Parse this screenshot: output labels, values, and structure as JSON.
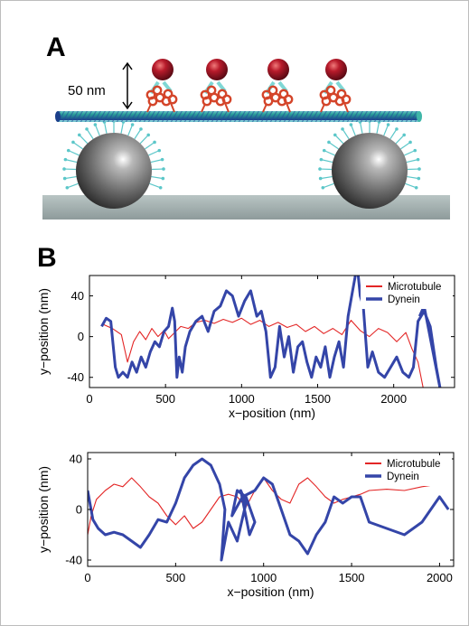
{
  "panel_a": {
    "letter": "A",
    "scale_label": "50 nm",
    "colors": {
      "microtubule": "#2aa199",
      "dynein_head": "#9b1020",
      "motor_domain": "#d4452a",
      "bead": "#6d6d6d",
      "linker": "#5cc7c9",
      "surface": "#a7b4b4"
    }
  },
  "panel_b": {
    "letter": "B",
    "colors": {
      "microtubule": "#e32626",
      "dynein": "#3445a8"
    }
  },
  "chart_data": [
    {
      "type": "line",
      "title": "",
      "xlabel": "x−position (nm)",
      "ylabel": "y−position (nm)",
      "xlim": [
        0,
        2400
      ],
      "ylim": [
        -50,
        60
      ],
      "xticks": [
        0,
        500,
        1000,
        1500,
        2000
      ],
      "yticks": [
        -40,
        0,
        40
      ],
      "legend": "top-right",
      "series": [
        {
          "name": "Microtubule",
          "color": "#e32626",
          "x": [
            90,
            150,
            210,
            250,
            290,
            330,
            370,
            410,
            450,
            490,
            520,
            560,
            600,
            650,
            700,
            760,
            820,
            880,
            940,
            1000,
            1060,
            1120,
            1180,
            1240,
            1300,
            1360,
            1420,
            1480,
            1540,
            1600,
            1660,
            1720,
            1780,
            1840,
            1900,
            1960,
            2020,
            2080,
            2120,
            2160,
            2200
          ],
          "y": [
            12,
            8,
            2,
            -25,
            -5,
            5,
            -3,
            8,
            0,
            6,
            -2,
            4,
            10,
            8,
            14,
            16,
            13,
            17,
            14,
            18,
            12,
            16,
            10,
            14,
            9,
            12,
            5,
            10,
            3,
            8,
            2,
            16,
            6,
            0,
            8,
            4,
            -5,
            4,
            -12,
            -25,
            -55
          ]
        },
        {
          "name": "Dynein",
          "color": "#3445a8",
          "x": [
            80,
            110,
            140,
            170,
            190,
            220,
            250,
            280,
            310,
            340,
            370,
            400,
            430,
            460,
            490,
            520,
            545,
            560,
            575,
            590,
            610,
            630,
            660,
            700,
            740,
            780,
            820,
            860,
            900,
            940,
            980,
            1020,
            1060,
            1100,
            1130,
            1160,
            1190,
            1220,
            1250,
            1280,
            1310,
            1340,
            1370,
            1400,
            1430,
            1460,
            1490,
            1520,
            1550,
            1580,
            1610,
            1640,
            1670,
            1700,
            1730,
            1760,
            1780,
            1800,
            1830,
            1860,
            1900,
            1940,
            1980,
            2020,
            2060,
            2100,
            2130,
            2160,
            2200,
            2240,
            2280,
            2310,
            2200,
            2170
          ],
          "y": [
            10,
            18,
            15,
            -30,
            -40,
            -35,
            -40,
            -25,
            -35,
            -20,
            -30,
            -15,
            -5,
            -10,
            5,
            10,
            28,
            15,
            -40,
            -20,
            -35,
            -10,
            5,
            15,
            20,
            5,
            25,
            30,
            45,
            40,
            20,
            35,
            45,
            20,
            25,
            5,
            -40,
            -30,
            10,
            -20,
            0,
            -35,
            -10,
            -5,
            -25,
            -40,
            -20,
            -30,
            -10,
            -40,
            -20,
            -5,
            -30,
            20,
            45,
            70,
            40,
            30,
            -30,
            -15,
            -35,
            -40,
            -30,
            -20,
            -35,
            -40,
            -30,
            15,
            25,
            10,
            -30,
            -55,
            30,
            20
          ]
        }
      ]
    },
    {
      "type": "line",
      "title": "",
      "xlabel": "x−position (nm)",
      "ylabel": "y−position (nm)",
      "xlim": [
        0,
        2080
      ],
      "ylim": [
        -45,
        45
      ],
      "xticks": [
        0,
        500,
        1000,
        1500,
        2000
      ],
      "yticks": [
        -40,
        0,
        40
      ],
      "legend": "top-right",
      "series": [
        {
          "name": "Microtubule",
          "color": "#e32626",
          "x": [
            0,
            20,
            50,
            100,
            150,
            200,
            250,
            300,
            350,
            400,
            450,
            500,
            550,
            600,
            650,
            700,
            750,
            800,
            850,
            900,
            950,
            1000,
            1050,
            1100,
            1150,
            1200,
            1250,
            1300,
            1350,
            1400,
            1450,
            1500,
            1550,
            1600,
            1700,
            1800,
            1900,
            2000,
            2050
          ],
          "y": [
            -20,
            -5,
            8,
            15,
            20,
            18,
            25,
            18,
            10,
            5,
            -5,
            -12,
            -5,
            -15,
            -10,
            0,
            10,
            12,
            10,
            2,
            15,
            25,
            15,
            8,
            5,
            20,
            25,
            18,
            10,
            5,
            8,
            10,
            12,
            15,
            16,
            15,
            18,
            20,
            20
          ]
        },
        {
          "name": "Dynein",
          "color": "#3445a8",
          "x": [
            0,
            30,
            60,
            100,
            150,
            200,
            250,
            300,
            350,
            400,
            450,
            500,
            550,
            600,
            650,
            700,
            750,
            780,
            760,
            800,
            850,
            900,
            870,
            920,
            950,
            900,
            850,
            820,
            880,
            950,
            1000,
            1050,
            1100,
            1150,
            1200,
            1250,
            1300,
            1350,
            1400,
            1450,
            1500,
            1550,
            1600,
            1700,
            1800,
            1900,
            2000,
            2050
          ],
          "y": [
            15,
            -8,
            -15,
            -20,
            -18,
            -20,
            -25,
            -30,
            -20,
            -8,
            -10,
            5,
            25,
            35,
            40,
            35,
            20,
            0,
            -40,
            -10,
            -25,
            5,
            15,
            -20,
            -10,
            10,
            15,
            -5,
            10,
            15,
            25,
            20,
            0,
            -20,
            -25,
            -35,
            -20,
            -10,
            10,
            5,
            10,
            10,
            -10,
            -15,
            -20,
            -10,
            10,
            0
          ]
        }
      ]
    }
  ]
}
